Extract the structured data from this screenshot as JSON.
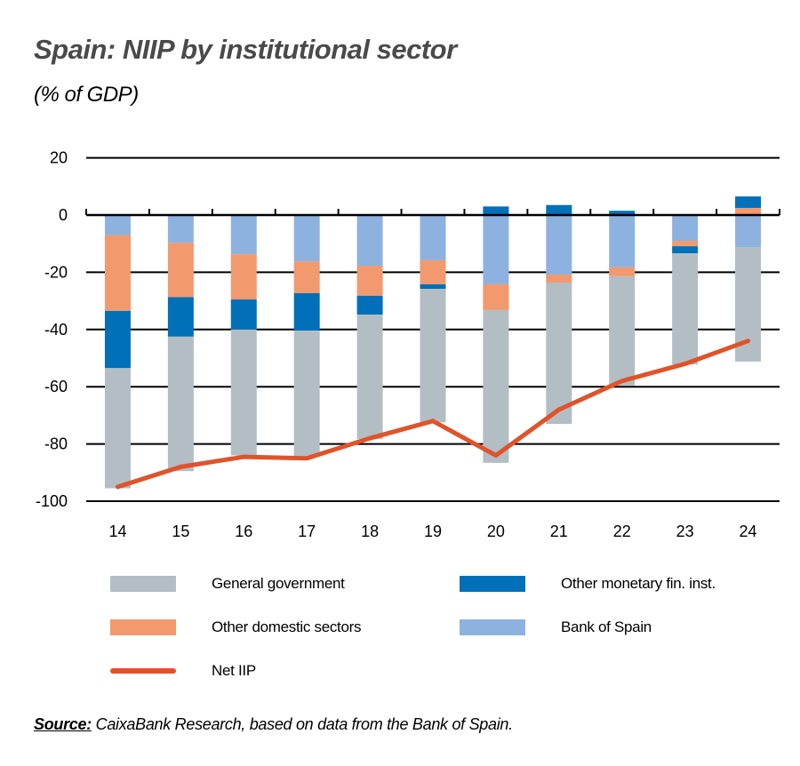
{
  "header": {
    "title": "Spain: NIIP by institutional sector",
    "subtitle": "(% of GDP)"
  },
  "legend": {
    "general_government": "General government",
    "other_monetary": "Other monetary fin. inst.",
    "other_domestic": "Other domestic sectors",
    "bank_of_spain": "Bank of Spain",
    "net_iip": "Net IIP"
  },
  "colors": {
    "general_government": "#b3bec4",
    "other_monetary": "#0070b8",
    "other_domestic": "#f2996e",
    "bank_of_spain": "#8eb2e0",
    "net_iip": "#e0532a"
  },
  "source": {
    "label": "Source:",
    "text": " CaixaBank Research, based on data from the Bank of Spain."
  },
  "chart_data": {
    "type": "bar",
    "stacked": true,
    "title": "Spain: NIIP by institutional sector",
    "subtitle": "(% of GDP)",
    "xlabel": "",
    "ylabel": "% of GDP",
    "ylim": [
      -100,
      20
    ],
    "yticks": [
      20,
      0,
      -20,
      -40,
      -60,
      -80,
      -100
    ],
    "grid": true,
    "legend_position": "bottom",
    "categories": [
      "14",
      "15",
      "16",
      "17",
      "18",
      "19",
      "20",
      "21",
      "22",
      "23",
      "24"
    ],
    "series": [
      {
        "name": "General government",
        "type": "bar",
        "values": [
          -42.0,
          -47.0,
          -44.0,
          -44.0,
          -43.5,
          -46.6,
          -53.4,
          -49.4,
          -38.2,
          -38.8,
          -40.0
        ]
      },
      {
        "name": "Other monetary fin. inst.",
        "type": "bar",
        "values": [
          -20.0,
          -13.8,
          -10.5,
          -13.1,
          -6.6,
          -1.6,
          3.0,
          3.5,
          1.5,
          -2.5,
          4.0
        ]
      },
      {
        "name": "Other domestic sectors",
        "type": "bar",
        "values": [
          -26.5,
          -19.0,
          -15.8,
          -11.1,
          -10.5,
          -8.4,
          -9.0,
          -2.8,
          -3.1,
          -1.9,
          2.5
        ]
      },
      {
        "name": "Bank of Spain",
        "type": "bar",
        "values": [
          -7.0,
          -9.7,
          -13.7,
          -16.2,
          -17.7,
          -15.8,
          -24.2,
          -20.8,
          -18.3,
          -9.0,
          -11.2
        ]
      },
      {
        "name": "Net IIP",
        "type": "line",
        "values": [
          -95.0,
          -88.0,
          -84.5,
          -85.0,
          -78.0,
          -72.0,
          -84.0,
          -68.0,
          -58.0,
          -52.0,
          -44.0
        ]
      }
    ]
  }
}
